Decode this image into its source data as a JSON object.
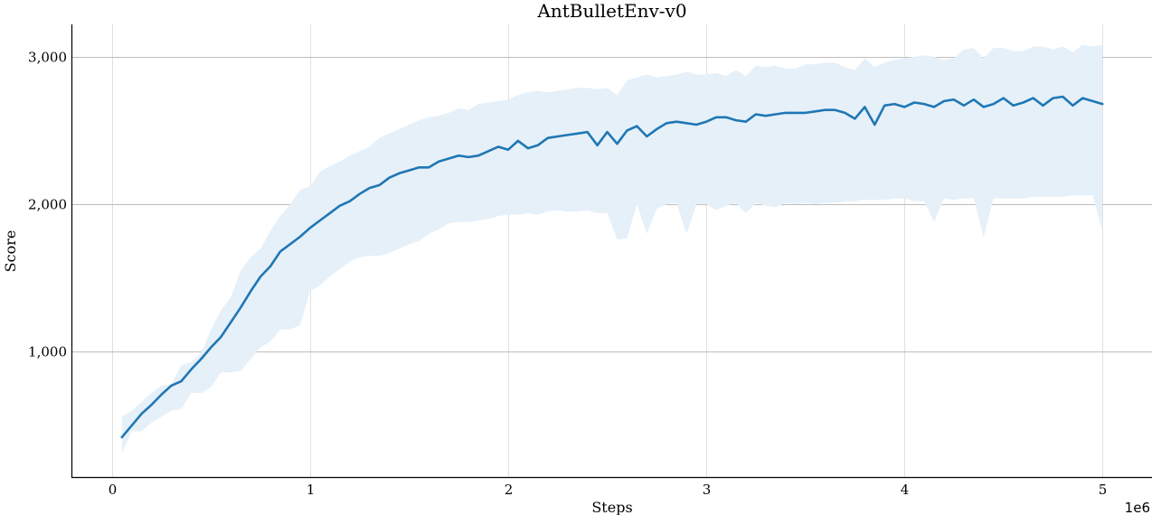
{
  "colors": {
    "line": "#1f77b4",
    "band": "#e6f0f9"
  },
  "chart_data": {
    "type": "line",
    "title": "AntBulletEnv-v0",
    "xlabel": "Steps",
    "ylabel": "Score",
    "x_offset_label": "1e6",
    "xlim": [
      -200000,
      5250000
    ],
    "ylim": [
      150,
      3220
    ],
    "x_ticks": [
      0,
      1000000,
      2000000,
      3000000,
      4000000,
      5000000
    ],
    "x_tick_labels": [
      "0",
      "1",
      "2",
      "3",
      "4",
      "5"
    ],
    "y_ticks": [
      1000,
      2000,
      3000
    ],
    "y_tick_labels": [
      "1,000",
      "2,000",
      "3,000"
    ],
    "grid": true,
    "x": [
      50000,
      100000,
      150000,
      200000,
      250000,
      300000,
      350000,
      400000,
      450000,
      500000,
      550000,
      600000,
      650000,
      700000,
      750000,
      800000,
      850000,
      900000,
      950000,
      1000000,
      1050000,
      1100000,
      1150000,
      1200000,
      1250000,
      1300000,
      1350000,
      1400000,
      1450000,
      1500000,
      1550000,
      1600000,
      1650000,
      1700000,
      1750000,
      1800000,
      1850000,
      1900000,
      1950000,
      2000000,
      2050000,
      2100000,
      2150000,
      2200000,
      2250000,
      2300000,
      2350000,
      2400000,
      2450000,
      2500000,
      2550000,
      2600000,
      2650000,
      2700000,
      2750000,
      2800000,
      2850000,
      2900000,
      2950000,
      3000000,
      3050000,
      3100000,
      3150000,
      3200000,
      3250000,
      3300000,
      3350000,
      3400000,
      3450000,
      3500000,
      3550000,
      3600000,
      3650000,
      3700000,
      3750000,
      3800000,
      3850000,
      3900000,
      3950000,
      4000000,
      4050000,
      4100000,
      4150000,
      4200000,
      4250000,
      4300000,
      4350000,
      4400000,
      4450000,
      4500000,
      4550000,
      4600000,
      4650000,
      4700000,
      4750000,
      4800000,
      4850000,
      4900000,
      4950000,
      5000000
    ],
    "series": [
      {
        "mean": [
          420,
          500,
          580,
          640,
          710,
          770,
          800,
          880,
          950,
          1030,
          1100,
          1200,
          1300,
          1410,
          1510,
          1580,
          1680,
          1730,
          1780,
          1840,
          1890,
          1940,
          1990,
          2020,
          2070,
          2110,
          2130,
          2180,
          2210,
          2230,
          2250,
          2250,
          2290,
          2310,
          2330,
          2320,
          2330,
          2360,
          2390,
          2370,
          2430,
          2380,
          2400,
          2450,
          2460,
          2470,
          2480,
          2490,
          2400,
          2490,
          2410,
          2500,
          2530,
          2460,
          2510,
          2550,
          2560,
          2550,
          2540,
          2560,
          2590,
          2590,
          2570,
          2560,
          2610,
          2600,
          2610,
          2620,
          2620,
          2620,
          2630,
          2640,
          2640,
          2620,
          2580,
          2660,
          2540,
          2670,
          2680,
          2660,
          2690,
          2680,
          2660,
          2700,
          2710,
          2670,
          2710,
          2660,
          2680,
          2720,
          2670,
          2690,
          2720,
          2670,
          2720,
          2730,
          2670,
          2720,
          2700,
          2680
        ],
        "upper": [
          560,
          600,
          660,
          720,
          770,
          780,
          910,
          930,
          990,
          1150,
          1280,
          1370,
          1550,
          1640,
          1700,
          1820,
          1920,
          2000,
          2100,
          2120,
          2220,
          2260,
          2290,
          2330,
          2360,
          2390,
          2450,
          2480,
          2510,
          2540,
          2570,
          2590,
          2600,
          2620,
          2650,
          2640,
          2680,
          2690,
          2700,
          2710,
          2740,
          2760,
          2770,
          2760,
          2770,
          2780,
          2790,
          2790,
          2780,
          2790,
          2740,
          2840,
          2860,
          2880,
          2860,
          2870,
          2880,
          2900,
          2880,
          2880,
          2890,
          2870,
          2910,
          2870,
          2940,
          2930,
          2940,
          2920,
          2920,
          2950,
          2950,
          2960,
          2960,
          2930,
          2910,
          2990,
          2930,
          2960,
          2980,
          2990,
          3000,
          3010,
          3000,
          2980,
          2990,
          3050,
          3060,
          2990,
          3060,
          3060,
          3040,
          3040,
          3070,
          3070,
          3050,
          3070,
          3030,
          3080,
          3070,
          3080
        ],
        "lower": [
          310,
          460,
          460,
          520,
          560,
          600,
          610,
          720,
          720,
          760,
          860,
          860,
          870,
          950,
          1030,
          1070,
          1150,
          1150,
          1180,
          1410,
          1450,
          1510,
          1560,
          1610,
          1640,
          1650,
          1650,
          1670,
          1700,
          1730,
          1750,
          1800,
          1830,
          1870,
          1880,
          1880,
          1890,
          1900,
          1920,
          1930,
          1930,
          1940,
          1930,
          1950,
          1960,
          1950,
          1950,
          1960,
          1940,
          1940,
          1760,
          1770,
          2000,
          1800,
          1970,
          2000,
          2010,
          1800,
          2000,
          2000,
          1960,
          1990,
          2010,
          1940,
          2010,
          1990,
          1980,
          2010,
          2000,
          2010,
          2000,
          2010,
          2010,
          2020,
          2020,
          2030,
          2030,
          2030,
          2040,
          2040,
          2020,
          2020,
          1880,
          2040,
          2030,
          2040,
          2040,
          1780,
          2040,
          2040,
          2040,
          2040,
          2050,
          2050,
          2050,
          2050,
          2060,
          2060,
          2060,
          1820
        ]
      }
    ]
  }
}
